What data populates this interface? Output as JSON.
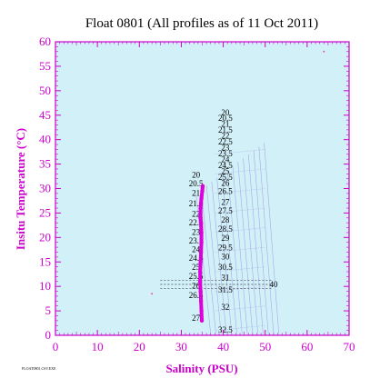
{
  "chart_data": {
    "type": "scatter",
    "title": "Float 0801  (All profiles as of 11 Oct 2011)",
    "xlabel": "Salinity (PSU)",
    "ylabel": "Insitu Temperature (°C)",
    "xlim": [
      0,
      70
    ],
    "ylim": [
      0,
      60
    ],
    "xticks": [
      "0",
      "10",
      "20",
      "30",
      "40",
      "50",
      "60",
      "70"
    ],
    "yticks": [
      "0",
      "5",
      "10",
      "15",
      "20",
      "25",
      "30",
      "35",
      "40",
      "45",
      "50",
      "55",
      "60"
    ],
    "grid": false,
    "colors": {
      "plot_bg": "#d2f0f8",
      "axis": "#cc00cc",
      "profile": "#dd00dd",
      "contour": "#a8a8e8",
      "outlier": "#e06080"
    },
    "profile": {
      "x": [
        34.9,
        34.8,
        34.7,
        34.6,
        34.5,
        34.5,
        34.6,
        34.7,
        34.8,
        34.8,
        34.7,
        34.6,
        34.6,
        34.7,
        34.8,
        35.0,
        35.1
      ],
      "y": [
        3,
        5,
        7,
        9,
        11,
        13,
        15,
        17,
        19,
        21,
        23,
        24,
        26,
        27,
        28,
        29.5,
        30.5
      ]
    },
    "outliers": [
      {
        "x": 23.0,
        "y": 8.5
      },
      {
        "x": 64.0,
        "y": 58.0
      }
    ],
    "density_labels": [
      {
        "text": "20",
        "x": 40.5,
        "y": 45.0
      },
      {
        "text": "20.5",
        "x": 40.5,
        "y": 43.8
      },
      {
        "text": "21",
        "x": 40.5,
        "y": 42.6
      },
      {
        "text": "21.5",
        "x": 40.5,
        "y": 41.4
      },
      {
        "text": "22",
        "x": 40.5,
        "y": 40.2
      },
      {
        "text": "22.5",
        "x": 40.5,
        "y": 39.0
      },
      {
        "text": "23",
        "x": 40.5,
        "y": 37.8
      },
      {
        "text": "23.5",
        "x": 40.5,
        "y": 36.6
      },
      {
        "text": "24",
        "x": 40.5,
        "y": 35.4
      },
      {
        "text": "24.5",
        "x": 40.5,
        "y": 34.2
      },
      {
        "text": "25",
        "x": 40.5,
        "y": 33.0
      },
      {
        "text": "25.5",
        "x": 40.5,
        "y": 31.8
      },
      {
        "text": "26",
        "x": 40.5,
        "y": 30.6
      },
      {
        "text": "26.5",
        "x": 40.5,
        "y": 28.9
      },
      {
        "text": "27",
        "x": 40.5,
        "y": 26.7
      },
      {
        "text": "27.5",
        "x": 40.5,
        "y": 24.9
      },
      {
        "text": "28",
        "x": 40.5,
        "y": 23.0
      },
      {
        "text": "28.5",
        "x": 40.5,
        "y": 21.2
      },
      {
        "text": "29",
        "x": 40.5,
        "y": 19.3
      },
      {
        "text": "29.5",
        "x": 40.5,
        "y": 17.4
      },
      {
        "text": "30",
        "x": 40.5,
        "y": 15.5
      },
      {
        "text": "30.5",
        "x": 40.5,
        "y": 13.4
      },
      {
        "text": "31",
        "x": 40.5,
        "y": 11.2
      },
      {
        "text": "31.5",
        "x": 40.5,
        "y": 8.7
      },
      {
        "text": "32",
        "x": 40.5,
        "y": 5.2
      },
      {
        "text": "32.5",
        "x": 40.5,
        "y": 0.6
      },
      {
        "text": "20",
        "x": 33.5,
        "y": 32.2
      },
      {
        "text": "20.5",
        "x": 33.5,
        "y": 30.5
      },
      {
        "text": "21",
        "x": 33.5,
        "y": 28.5
      },
      {
        "text": "21.5",
        "x": 33.5,
        "y": 26.4
      },
      {
        "text": "22",
        "x": 33.5,
        "y": 24.2
      },
      {
        "text": "22.5",
        "x": 33.5,
        "y": 22.5
      },
      {
        "text": "23",
        "x": 33.5,
        "y": 20.5
      },
      {
        "text": "23.5",
        "x": 33.5,
        "y": 18.8
      },
      {
        "text": "24",
        "x": 33.5,
        "y": 17.0
      },
      {
        "text": "24.5",
        "x": 33.5,
        "y": 15.2
      },
      {
        "text": "25",
        "x": 33.5,
        "y": 13.4
      },
      {
        "text": "25.5",
        "x": 33.5,
        "y": 11.5
      },
      {
        "text": "26",
        "x": 33.5,
        "y": 9.6
      },
      {
        "text": "26.5",
        "x": 33.5,
        "y": 7.6
      },
      {
        "text": "27",
        "x": 33.5,
        "y": 3.0
      },
      {
        "text": "40",
        "x": 52.0,
        "y": 9.8
      }
    ],
    "footnote": "FLOAT0801.CSV.EXE"
  }
}
